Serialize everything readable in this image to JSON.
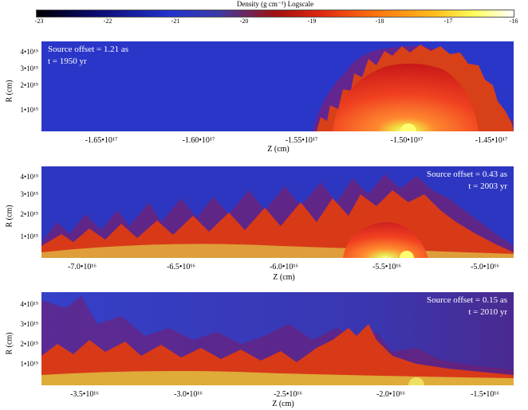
{
  "colorbar": {
    "title": "Density (g cm⁻³) Logscale",
    "ticks": [
      "-23",
      "-22",
      "-21",
      "-20",
      "-19",
      "-18",
      "-17",
      "-16"
    ]
  },
  "panels": [
    {
      "annotation_line1": "Source offset = 1.21 as",
      "annotation_line2": "t = 1950 yr",
      "ylabel": "R (cm)",
      "xlabel": "Z (cm)",
      "yticks": [
        "4•10¹⁵",
        "3•10¹⁵",
        "2•10¹⁵",
        "1•10¹⁵"
      ],
      "xticks": [
        "-1.65•10¹⁷",
        "-1.60•10¹⁷",
        "-1.55•10¹⁷",
        "-1.50•10¹⁷",
        "-1.45•10¹⁷"
      ]
    },
    {
      "annotation_line1": "Source offset = 0.43 as",
      "annotation_line2": "t = 2003 yr",
      "ylabel": "R (cm)",
      "xlabel": "Z (cm)",
      "yticks": [
        "4•10¹⁵",
        "3•10¹⁵",
        "2•10¹⁵",
        "1•10¹⁵"
      ],
      "xticks": [
        "-7.0•10¹⁶",
        "-6.5•10¹⁶",
        "-6.0•10¹⁶",
        "-5.5•10¹⁶",
        "-5.0•10¹⁶"
      ]
    },
    {
      "annotation_line1": "Source offset = 0.15 as",
      "annotation_line2": "t = 2010 yr",
      "ylabel": "R (cm)",
      "xlabel": "Z (cm)",
      "yticks": [
        "4•10¹⁵",
        "3•10¹⁵",
        "2•10¹⁵",
        "1•10¹⁵"
      ],
      "xticks": [
        "-3.5•10¹⁶",
        "-3.0•10¹⁶",
        "-2.5•10¹⁶",
        "-2.0•10¹⁶",
        "-1.5•10¹⁶"
      ]
    }
  ]
}
